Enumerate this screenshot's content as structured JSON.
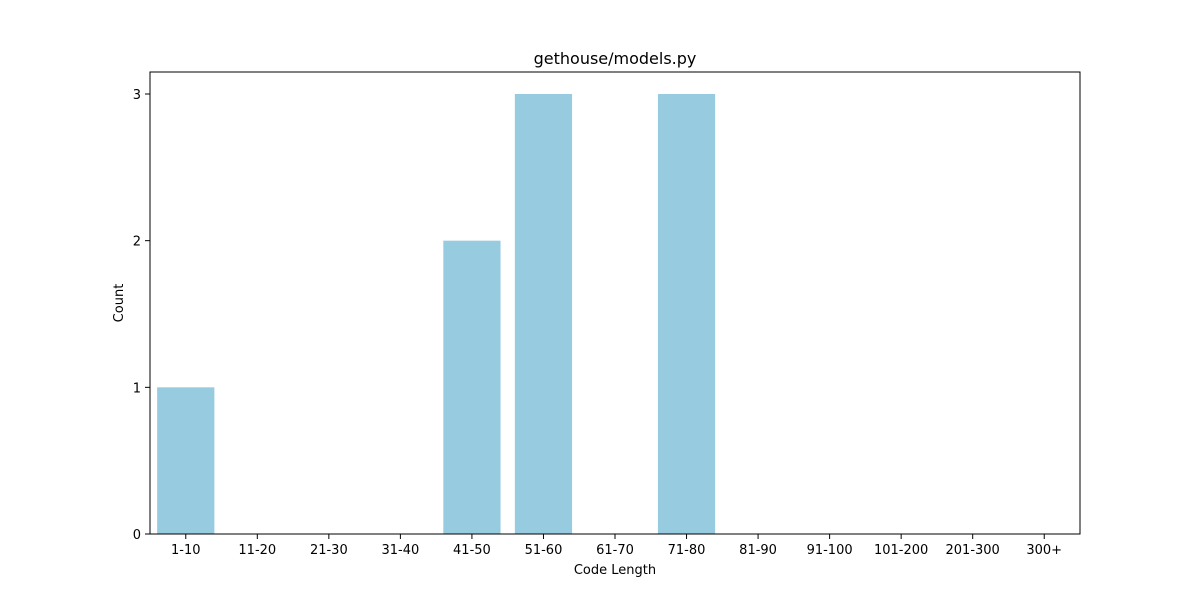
{
  "chart_data": {
    "type": "bar",
    "title": "gethouse/models.py",
    "xlabel": "Code Length",
    "ylabel": "Count",
    "categories": [
      "1-10",
      "11-20",
      "21-30",
      "31-40",
      "41-50",
      "51-60",
      "61-70",
      "71-80",
      "81-90",
      "91-100",
      "101-200",
      "201-300",
      "300+"
    ],
    "values": [
      1,
      0,
      0,
      0,
      2,
      3,
      0,
      3,
      0,
      0,
      0,
      0,
      0
    ],
    "yticks": [
      0,
      1,
      2,
      3
    ],
    "ylim": [
      0,
      3.15
    ],
    "grid": false,
    "bar_color": "#96cbe0"
  }
}
